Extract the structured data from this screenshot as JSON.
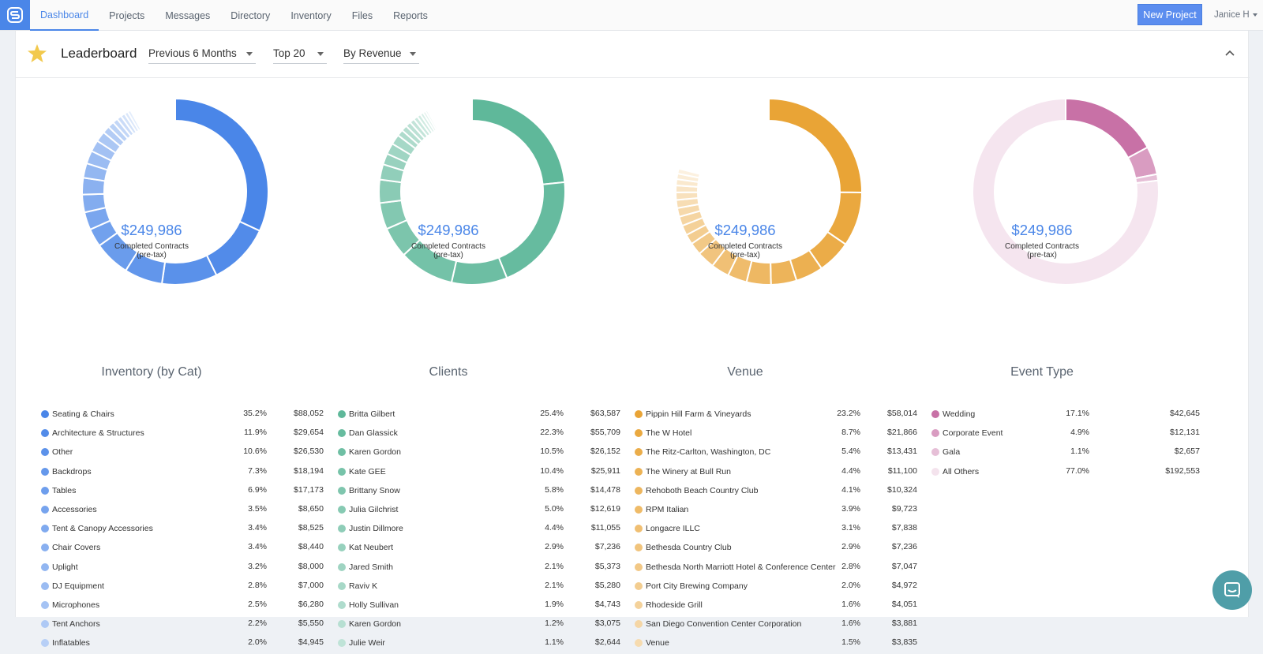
{
  "nav": {
    "items": [
      "Dashboard",
      "Projects",
      "Messages",
      "Directory",
      "Inventory",
      "Files",
      "Reports"
    ],
    "active_index": 0,
    "new_project_label": "New Project",
    "user_label": "Janice H"
  },
  "leaderboard": {
    "title": "Leaderboard",
    "period": "Previous 6 Months",
    "limit": "Top 20",
    "sort": "By Revenue"
  },
  "charts": [
    {
      "title": "Inventory (by Cat)",
      "center_amount": "$249,986",
      "center_label_1": "Completed Contracts",
      "center_label_2": "(pre-tax)",
      "color": "#4a86e8",
      "legend": [
        {
          "name": "Seating & Chairs",
          "pct": "35.2%",
          "amt": "$88,052"
        },
        {
          "name": "Architecture & Structures",
          "pct": "11.9%",
          "amt": "$29,654"
        },
        {
          "name": "Other",
          "pct": "10.6%",
          "amt": "$26,530"
        },
        {
          "name": "Backdrops",
          "pct": "7.3%",
          "amt": "$18,194"
        },
        {
          "name": "Tables",
          "pct": "6.9%",
          "amt": "$17,173"
        },
        {
          "name": "Accessories",
          "pct": "3.5%",
          "amt": "$8,650"
        },
        {
          "name": "Tent & Canopy Accessories",
          "pct": "3.4%",
          "amt": "$8,525"
        },
        {
          "name": "Chair Covers",
          "pct": "3.4%",
          "amt": "$8,440"
        },
        {
          "name": "Uplight",
          "pct": "3.2%",
          "amt": "$8,000"
        },
        {
          "name": "DJ Equipment",
          "pct": "2.8%",
          "amt": "$7,000"
        },
        {
          "name": "Microphones",
          "pct": "2.5%",
          "amt": "$6,280"
        },
        {
          "name": "Tent Anchors",
          "pct": "2.2%",
          "amt": "$5,550"
        },
        {
          "name": "Inflatables",
          "pct": "2.0%",
          "amt": "$4,945"
        }
      ],
      "slices": [
        35.2,
        11.9,
        10.6,
        7.3,
        6.9,
        3.5,
        3.4,
        3.4,
        3.2,
        2.8,
        2.5,
        2.2,
        2.0,
        1.4,
        1.2,
        1.0,
        0.9,
        0.8,
        0.7,
        0.6
      ]
    },
    {
      "title": "Clients",
      "center_amount": "$249,986",
      "center_label_1": "Completed Contracts",
      "center_label_2": "(pre-tax)",
      "color": "#5fb89a",
      "legend": [
        {
          "name": "Britta Gilbert",
          "pct": "25.4%",
          "amt": "$63,587"
        },
        {
          "name": "Dan Glassick",
          "pct": "22.3%",
          "amt": "$55,709"
        },
        {
          "name": "Karen Gordon",
          "pct": "10.5%",
          "amt": "$26,152"
        },
        {
          "name": "Kate GEE",
          "pct": "10.4%",
          "amt": "$25,911"
        },
        {
          "name": "Brittany Snow",
          "pct": "5.8%",
          "amt": "$14,478"
        },
        {
          "name": "Julia Gilchrist",
          "pct": "5.0%",
          "amt": "$12,619"
        },
        {
          "name": "Justin Dillmore",
          "pct": "4.4%",
          "amt": "$11,055"
        },
        {
          "name": "Kat Neubert",
          "pct": "2.9%",
          "amt": "$7,236"
        },
        {
          "name": "Jared Smith",
          "pct": "2.1%",
          "amt": "$5,373"
        },
        {
          "name": "Raviv K",
          "pct": "2.1%",
          "amt": "$5,280"
        },
        {
          "name": "Holly Sullivan",
          "pct": "1.9%",
          "amt": "$4,743"
        },
        {
          "name": "Karen Gordon",
          "pct": "1.2%",
          "amt": "$3,075"
        },
        {
          "name": "Julie Weir",
          "pct": "1.1%",
          "amt": "$2,644"
        }
      ],
      "slices": [
        25.4,
        22.3,
        10.5,
        10.4,
        5.8,
        5.0,
        4.4,
        2.9,
        2.1,
        2.1,
        1.9,
        1.2,
        1.1,
        1.0,
        0.9,
        0.8,
        0.7,
        0.6,
        0.5,
        0.4
      ]
    },
    {
      "title": "Venue",
      "center_amount": "$249,986",
      "center_label_1": "Completed Contracts",
      "center_label_2": "(pre-tax)",
      "color": "#e9a436",
      "legend": [
        {
          "name": "Pippin Hill Farm & Vineyards",
          "pct": "23.2%",
          "amt": "$58,014"
        },
        {
          "name": "The W Hotel",
          "pct": "8.7%",
          "amt": "$21,866"
        },
        {
          "name": "The Ritz-Carlton, Washington, DC",
          "pct": "5.4%",
          "amt": "$13,431"
        },
        {
          "name": "The Winery at Bull Run",
          "pct": "4.4%",
          "amt": "$11,100"
        },
        {
          "name": "Rehoboth Beach Country Club",
          "pct": "4.1%",
          "amt": "$10,324"
        },
        {
          "name": "RPM Italian",
          "pct": "3.9%",
          "amt": "$9,723"
        },
        {
          "name": "Longacre ILLC",
          "pct": "3.1%",
          "amt": "$7,838"
        },
        {
          "name": "Bethesda Country Club",
          "pct": "2.9%",
          "amt": "$7,236"
        },
        {
          "name": "Bethesda North Marriott Hotel & Conference Center",
          "pct": "2.8%",
          "amt": "$7,047"
        },
        {
          "name": "Port City Brewing Company",
          "pct": "2.0%",
          "amt": "$4,972"
        },
        {
          "name": "Rhodeside Grill",
          "pct": "1.6%",
          "amt": "$4,051"
        },
        {
          "name": "San Diego Convention Center Corporation",
          "pct": "1.6%",
          "amt": "$3,881"
        },
        {
          "name": "Venue",
          "pct": "1.5%",
          "amt": "$3,835"
        }
      ],
      "slices": [
        23.2,
        8.7,
        5.4,
        4.4,
        4.1,
        3.9,
        3.1,
        2.9,
        2.8,
        2.0,
        1.6,
        1.6,
        1.5,
        1.4,
        1.3,
        1.2,
        1.1,
        1.0,
        0.9,
        0.8
      ]
    },
    {
      "title": "Event Type",
      "center_amount": "$249,986",
      "center_label_1": "Completed Contracts",
      "center_label_2": "(pre-tax)",
      "color": "#c871a6",
      "legend": [
        {
          "name": "Wedding",
          "pct": "17.1%",
          "amt": "$42,645"
        },
        {
          "name": "Corporate Event",
          "pct": "4.9%",
          "amt": "$12,131"
        },
        {
          "name": "Gala",
          "pct": "1.1%",
          "amt": "$2,657"
        },
        {
          "name": "All Others",
          "pct": "77.0%",
          "amt": "$192,553"
        }
      ],
      "slices": [
        17.1,
        4.9,
        1.1,
        77.0
      ]
    }
  ]
}
